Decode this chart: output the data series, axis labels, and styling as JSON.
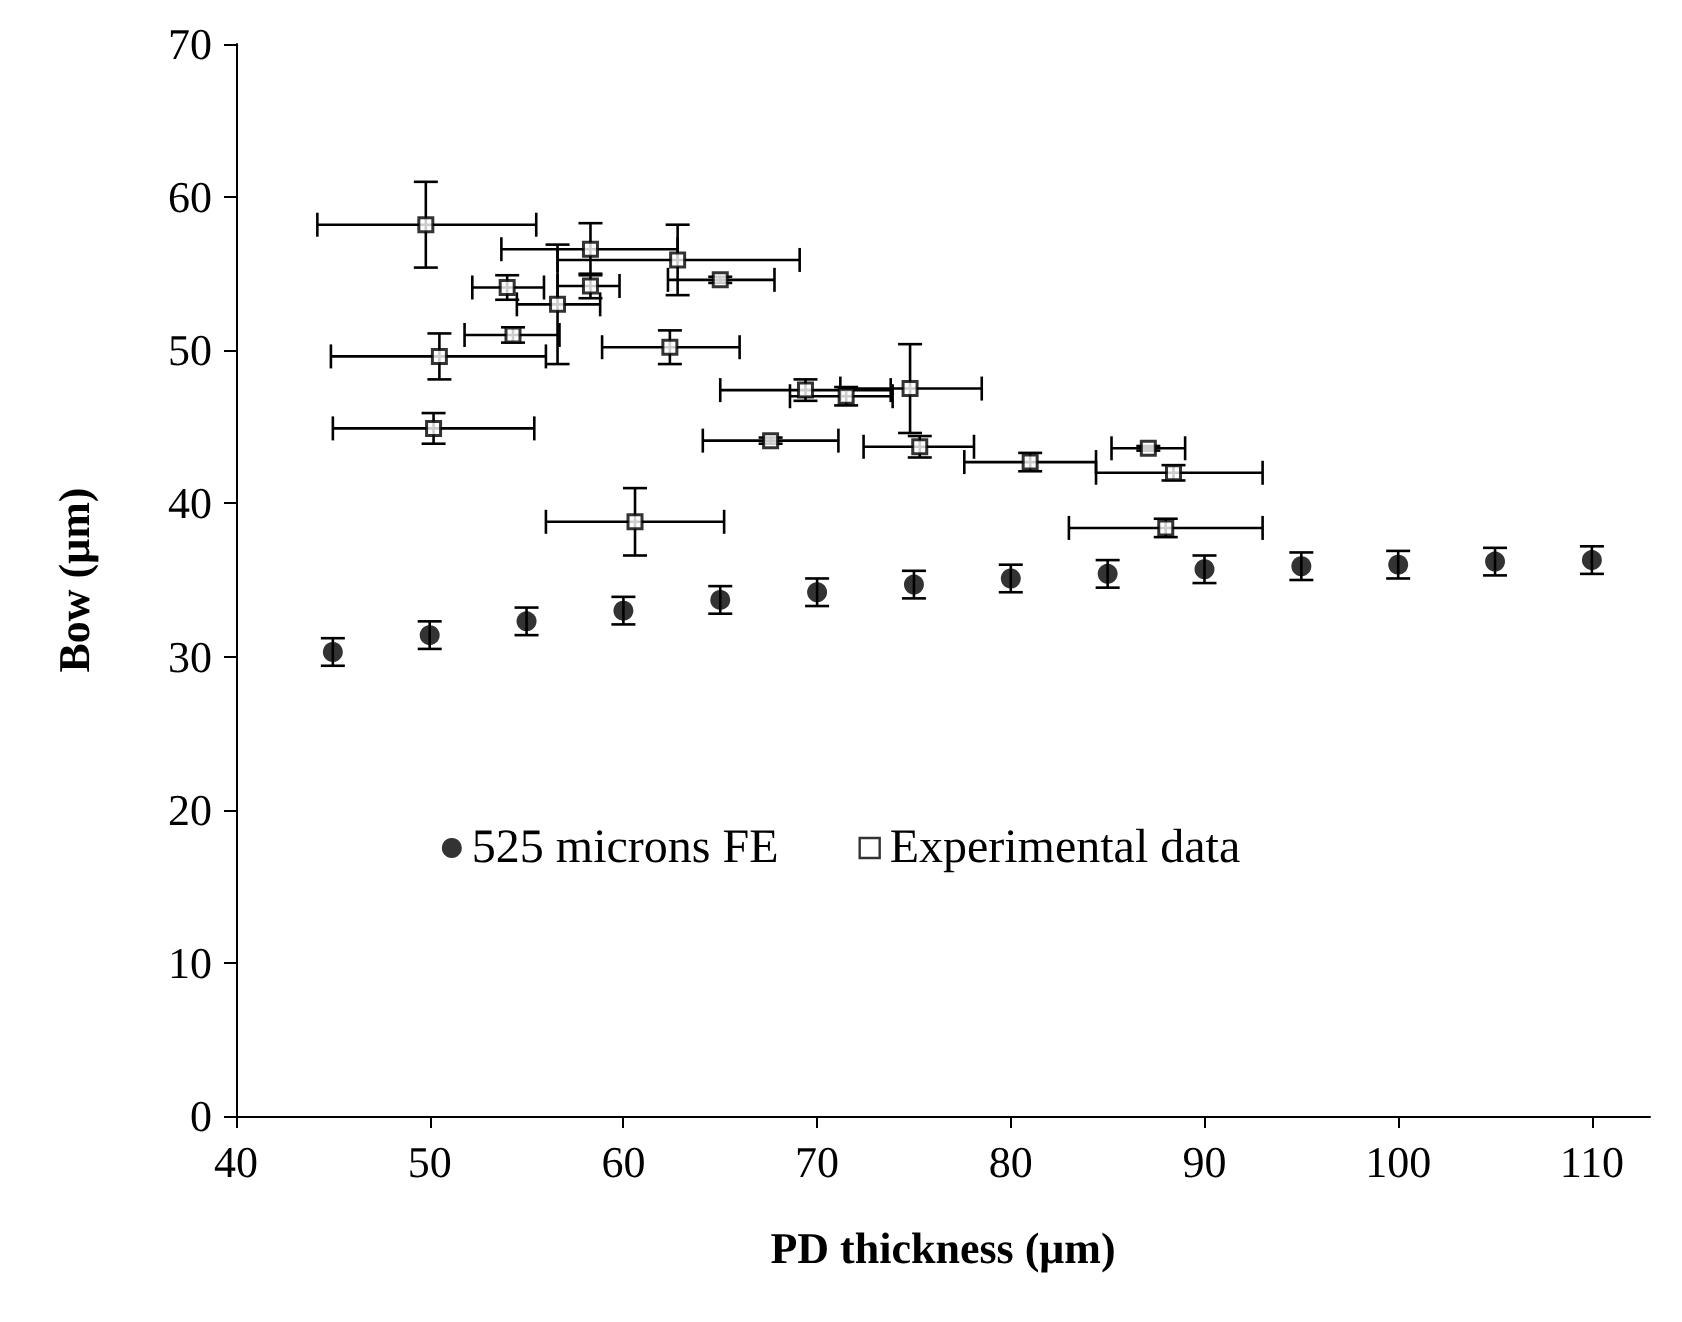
{
  "chart_data": {
    "type": "scatter",
    "xlabel": "PD thickness (μm)",
    "ylabel": "Bow (μm)",
    "xlim": [
      40,
      113
    ],
    "xticks": [
      40,
      50,
      60,
      70,
      80,
      90,
      100,
      110
    ],
    "ylim": [
      0,
      70
    ],
    "yticks": [
      0,
      10,
      20,
      30,
      40,
      50,
      60,
      70
    ],
    "grid": false,
    "legend": "bottom",
    "series": [
      {
        "name": "525 microns FE",
        "color": "#000000",
        "marker": "circle",
        "x": [
          45,
          50,
          55,
          60,
          65,
          70,
          75,
          80,
          85,
          90,
          95,
          100,
          105,
          110
        ],
        "values": [
          30.3,
          31.4,
          32.3,
          33.0,
          33.7,
          34.2,
          34.7,
          35.1,
          35.4,
          35.7,
          35.9,
          36.0,
          36.2,
          36.3
        ],
        "errors": [
          0.9,
          0.9,
          0.9,
          0.9,
          0.9,
          0.9,
          0.9,
          0.9,
          0.9,
          0.9,
          0.9,
          0.9,
          0.9,
          0.9
        ]
      },
      {
        "name": "Experimental data",
        "color": "#000000",
        "marker": "square",
        "x": [
          49.8,
          58.3,
          62.8,
          65.0,
          54.0,
          58.3,
          56.6,
          54.3,
          50.5,
          62.4,
          50.2,
          60.6,
          69.4,
          71.5,
          74.8,
          67.6,
          75.3,
          81.0,
          87.1,
          88.4,
          88.0
        ],
        "values": [
          58.2,
          56.6,
          55.9,
          54.6,
          54.1,
          54.2,
          53.0,
          51.0,
          49.6,
          50.2,
          44.9,
          38.8,
          47.4,
          47.0,
          47.5,
          44.1,
          43.7,
          42.7,
          43.6,
          42.0,
          38.4
        ],
        "errors": [
          2.8,
          1.7,
          2.3,
          0.2,
          0.8,
          0.8,
          3.9,
          0.5,
          1.5,
          1.1,
          1.0,
          2.2,
          0.7,
          0.6,
          2.9,
          0.2,
          0.7,
          0.6,
          0.15,
          0.5,
          0.6
        ],
        "xerrors": [
          [
            44.2,
            55.5
          ],
          [
            53.7,
            62.8
          ],
          [
            56.6,
            69.1
          ],
          [
            62.3,
            67.8
          ],
          [
            52.2,
            55.9
          ],
          [
            56.6,
            59.8
          ],
          [
            54.5,
            58.8
          ],
          [
            51.8,
            56.7
          ],
          [
            44.9,
            56.0
          ],
          [
            58.9,
            66.0
          ],
          [
            45.0,
            55.4
          ],
          [
            56.0,
            65.2
          ],
          [
            65.0,
            73.8
          ],
          [
            68.6,
            73.9
          ],
          [
            71.2,
            78.5
          ],
          [
            64.1,
            71.1
          ],
          [
            72.4,
            78.1
          ],
          [
            77.6,
            84.4
          ],
          [
            85.2,
            89.0
          ],
          [
            84.4,
            93.0
          ],
          [
            83.0,
            93.0
          ]
        ]
      }
    ]
  }
}
